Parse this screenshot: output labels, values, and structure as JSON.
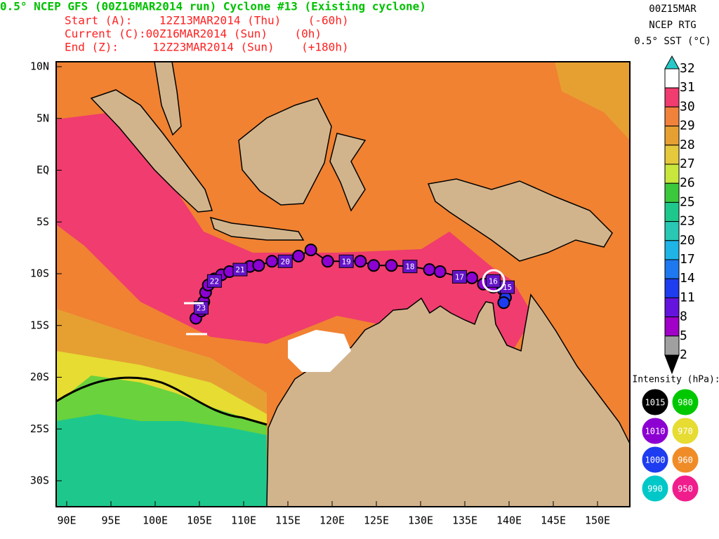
{
  "header": {
    "title": "0.5° NCEP GFS (00Z16MAR2014 run) Cyclone #13 (Existing cyclone)",
    "lines": [
      "Start (A):    12Z13MAR2014 (Thu)    (-60h)",
      "Current (C):00Z16MAR2014 (Sun)    (0h)",
      "End (Z):     12Z23MAR2014 (Sun)    (+180h)"
    ],
    "sst_info": [
      "00Z15MAR",
      "NCEP RTG",
      "0.5° SST (°C)"
    ]
  },
  "map": {
    "lon_ticks": [
      {
        "value": 90,
        "label": "90E"
      },
      {
        "value": 95,
        "label": "95E"
      },
      {
        "value": 100,
        "label": "100E"
      },
      {
        "value": 105,
        "label": "105E"
      },
      {
        "value": 110,
        "label": "110E"
      },
      {
        "value": 115,
        "label": "115E"
      },
      {
        "value": 120,
        "label": "120E"
      },
      {
        "value": 125,
        "label": "125E"
      },
      {
        "value": 130,
        "label": "130E"
      },
      {
        "value": 135,
        "label": "135E"
      },
      {
        "value": 140,
        "label": "140E"
      },
      {
        "value": 145,
        "label": "145E"
      },
      {
        "value": 150,
        "label": "150E"
      }
    ],
    "lat_ticks": [
      {
        "value": 10,
        "label": "10N"
      },
      {
        "value": 5,
        "label": "5N"
      },
      {
        "value": 0,
        "label": "EQ"
      },
      {
        "value": -5,
        "label": "5S"
      },
      {
        "value": -10,
        "label": "10S"
      },
      {
        "value": -15,
        "label": "15S"
      },
      {
        "value": -20,
        "label": "20S"
      },
      {
        "value": -25,
        "label": "25S"
      },
      {
        "value": -30,
        "label": "30S"
      }
    ],
    "track_lon": [
      104.6,
      105.2,
      105.5,
      105.7,
      106.0,
      106.7,
      107.5,
      108.4,
      109.6,
      110.7,
      111.7,
      113.2,
      114.7,
      116.2,
      117.6,
      119.5,
      121.6,
      123.2,
      124.7,
      126.7,
      128.8,
      131.0,
      132.2,
      134.4,
      135.8,
      137.1,
      138.2,
      139.3,
      139.6,
      139.4
    ],
    "track_lat": [
      -14.3,
      -13.6,
      -12.7,
      -11.8,
      -11.1,
      -10.5,
      -10.1,
      -9.8,
      -9.6,
      -9.3,
      -9.2,
      -8.8,
      -8.8,
      -8.3,
      -7.7,
      -8.8,
      -8.8,
      -8.8,
      -9.2,
      -9.2,
      -9.3,
      -9.6,
      -9.8,
      -10.3,
      -10.4,
      -11.0,
      -11.3,
      -11.5,
      -12.3,
      -12.8
    ],
    "day_labels": [
      {
        "label": "23",
        "lon": 105.2,
        "lat": -13.3
      },
      {
        "label": "22",
        "lon": 106.7,
        "lat": -10.7
      },
      {
        "label": "21",
        "lon": 109.6,
        "lat": -9.6
      },
      {
        "label": "20",
        "lon": 114.7,
        "lat": -8.8
      },
      {
        "label": "19",
        "lon": 121.6,
        "lat": -8.8
      },
      {
        "label": "18",
        "lon": 128.8,
        "lat": -9.3
      },
      {
        "label": "17",
        "lon": 134.4,
        "lat": -10.3
      },
      {
        "label": "16",
        "lon": 138.2,
        "lat": -10.7
      },
      {
        "label": "15",
        "lon": 139.8,
        "lat": -11.3
      }
    ]
  },
  "sst_scale": [
    {
      "value": 32,
      "color": "#ffffff"
    },
    {
      "value": 31,
      "color": "#f03c6e"
    },
    {
      "value": 30,
      "color": "#f0823c"
    },
    {
      "value": 29,
      "color": "#e6a032"
    },
    {
      "value": 28,
      "color": "#e6c83c"
    },
    {
      "value": 27,
      "color": "#c8e63c"
    },
    {
      "value": 26,
      "color": "#3cc83c"
    },
    {
      "value": 25,
      "color": "#1ec88c"
    },
    {
      "value": 23,
      "color": "#28c8b4"
    },
    {
      "value": 20,
      "color": "#1eb4e6"
    },
    {
      "value": 17,
      "color": "#1e78f0"
    },
    {
      "value": 14,
      "color": "#1e3cf0"
    },
    {
      "value": 11,
      "color": "#6414dc"
    },
    {
      "value": 8,
      "color": "#a000c8"
    },
    {
      "value": 5,
      "color": "#a0a0a0"
    },
    {
      "value": 2,
      "color": "#000000"
    }
  ],
  "intensity": {
    "title": "Intensity (hPa):",
    "items": [
      {
        "label": "1015",
        "color": "#000000"
      },
      {
        "label": "980",
        "color": "#00c800"
      },
      {
        "label": "1010",
        "color": "#8c00d2"
      },
      {
        "label": "970",
        "color": "#e6dc32"
      },
      {
        "label": "1000",
        "color": "#1e3cf0"
      },
      {
        "label": "960",
        "color": "#f08c28"
      },
      {
        "label": "990",
        "color": "#00c8c8"
      },
      {
        "label": "950",
        "color": "#f01e8c"
      }
    ]
  }
}
